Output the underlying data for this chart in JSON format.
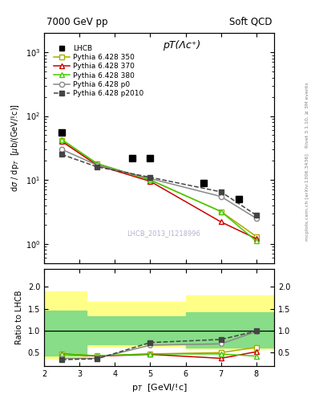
{
  "title_left": "7000 GeV pp",
  "title_right": "Soft QCD",
  "plot_title": "pT(Λc⁺)",
  "ylabel_main": "dσ / dp_T  [μb/(GeV/!c)]",
  "ylabel_ratio": "Ratio to LHCB",
  "xlabel": "p_T  [GeVl/!c]",
  "watermark": "LHCB_2013_I1218996",
  "right_label_top": "Rivet 3.1.10, ≥ 3M events",
  "right_label_bot": "mcplots.cern.ch [arXiv:1306.3436]",
  "pt_lhcb": [
    2.5,
    4.5,
    5.0,
    6.5,
    7.5
  ],
  "val_lhcb": [
    55.0,
    22.0,
    22.0,
    9.0,
    5.0
  ],
  "pt_sim": [
    2.5,
    3.5,
    5.0,
    7.0,
    8.0
  ],
  "val_350": [
    42,
    18,
    10,
    3.2,
    1.3
  ],
  "val_370": [
    40,
    17,
    9.5,
    2.2,
    1.2
  ],
  "val_380": [
    43,
    18,
    10,
    3.2,
    1.1
  ],
  "val_p0": [
    30,
    17,
    10.5,
    5.5,
    2.5
  ],
  "val_p2010": [
    25,
    16,
    11,
    6.5,
    2.8
  ],
  "ratio_pt": [
    2.5,
    3.5,
    5.0,
    7.0,
    8.0
  ],
  "ratio_350": [
    0.47,
    0.43,
    0.47,
    0.5,
    0.62
  ],
  "ratio_370": [
    0.47,
    0.42,
    0.46,
    0.37,
    0.52
  ],
  "ratio_380": [
    0.47,
    0.43,
    0.47,
    0.47,
    0.42
  ],
  "ratio_p0": [
    0.37,
    0.37,
    0.67,
    0.7,
    0.98
  ],
  "ratio_p2010": [
    0.34,
    0.36,
    0.73,
    0.8,
    0.99
  ],
  "col_350": "#aaaa00",
  "col_370": "#cc0000",
  "col_380": "#44cc00",
  "col_p0": "#888888",
  "col_p2010": "#444444",
  "ylim_main": [
    0.5,
    2000
  ],
  "ylim_ratio": [
    0.2,
    2.4
  ],
  "xlim": [
    2.0,
    8.5
  ]
}
